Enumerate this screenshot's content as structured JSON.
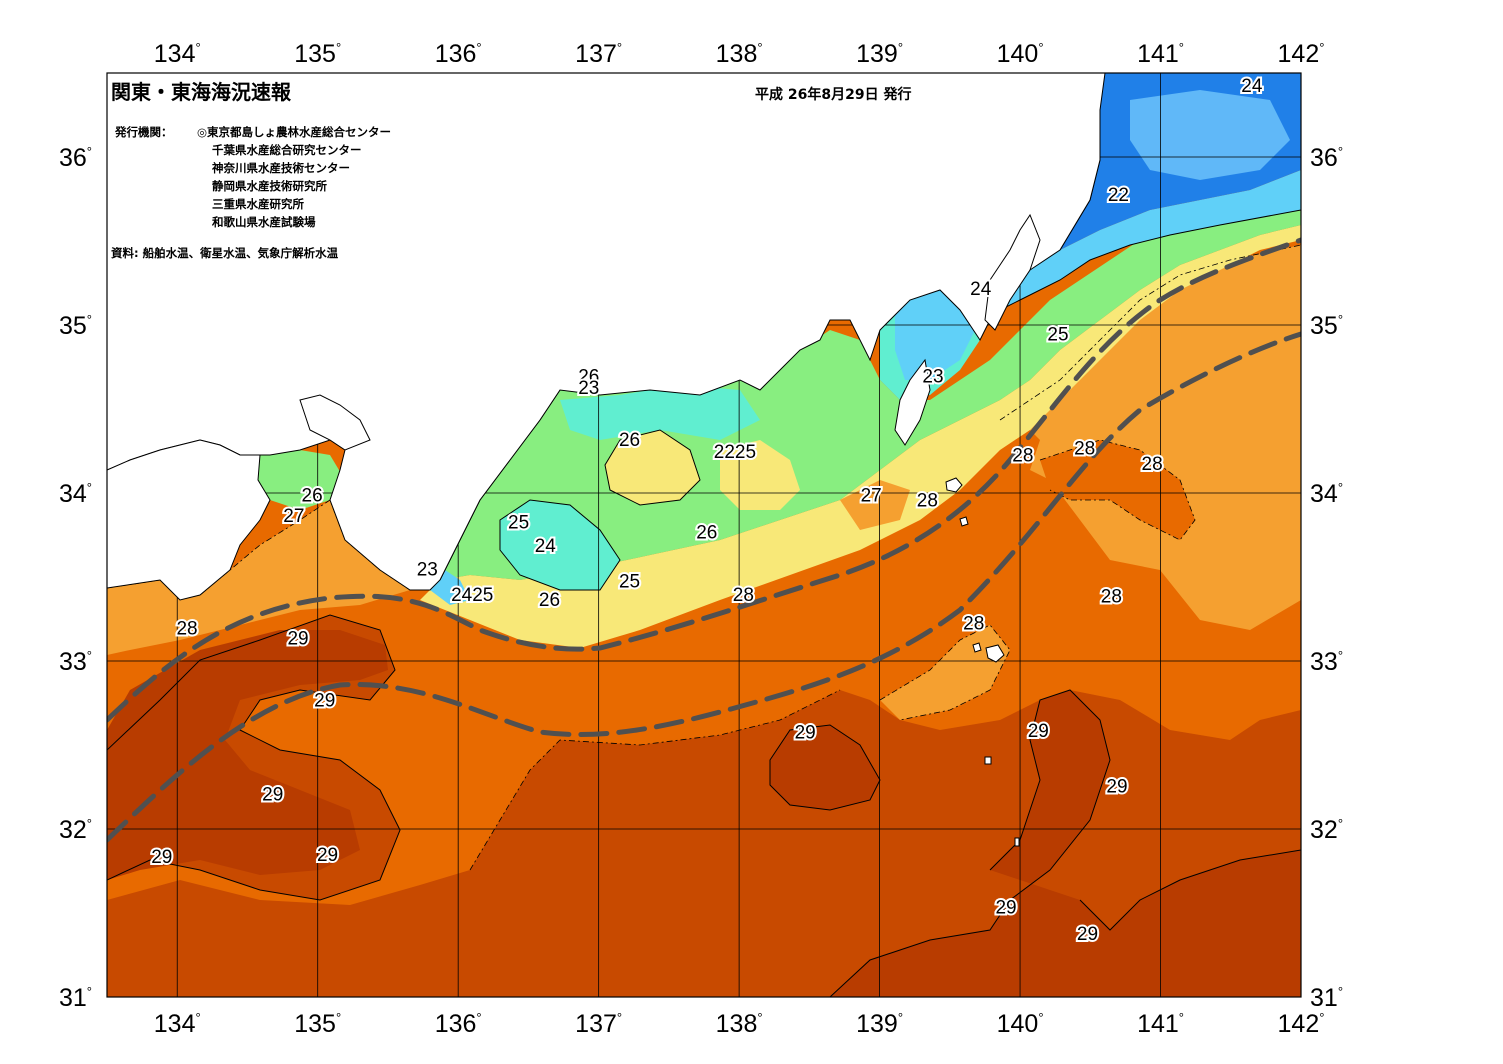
{
  "map": {
    "title": "関東・東海海況速報",
    "issue_date": "平成 26年8月29日 発行",
    "publishers_label": "発行機関：",
    "publishers": [
      "◎東京都島しょ農林水産総合センター",
      "千葉県水産総合研究センター",
      "神奈川県水産技術センター",
      "静岡県水産技術研究所",
      "三重県水産研究所",
      "和歌山県水産試験場"
    ],
    "source": "資料: 船舶水温、衛星水温、気象庁解析水温",
    "longitude_labels": [
      "134",
      "135",
      "136",
      "137",
      "138",
      "139",
      "140",
      "141",
      "142"
    ],
    "latitude_labels": [
      "31",
      "32",
      "33",
      "34",
      "35",
      "36"
    ],
    "degree_symbol": "°",
    "isotherm_labels": [
      {
        "text": "24",
        "lon": 141.65,
        "lat": 36.43
      },
      {
        "text": "22",
        "lon": 140.7,
        "lat": 35.78
      },
      {
        "text": "24",
        "lon": 139.72,
        "lat": 35.22
      },
      {
        "text": "25",
        "lon": 140.27,
        "lat": 34.95
      },
      {
        "text": "23",
        "lon": 139.38,
        "lat": 34.7
      },
      {
        "text": "26",
        "lon": 136.93,
        "lat": 34.7
      },
      {
        "text": "23",
        "lon": 136.93,
        "lat": 34.63
      },
      {
        "text": "26",
        "lon": 137.22,
        "lat": 34.32
      },
      {
        "text": "2225",
        "lon": 137.97,
        "lat": 34.25
      },
      {
        "text": "28",
        "lon": 140.02,
        "lat": 34.23
      },
      {
        "text": "28",
        "lon": 140.46,
        "lat": 34.27
      },
      {
        "text": "28",
        "lon": 140.94,
        "lat": 34.18
      },
      {
        "text": "27",
        "lon": 138.94,
        "lat": 33.99
      },
      {
        "text": "28",
        "lon": 139.34,
        "lat": 33.96
      },
      {
        "text": "26",
        "lon": 134.96,
        "lat": 33.99
      },
      {
        "text": "27",
        "lon": 134.83,
        "lat": 33.87
      },
      {
        "text": "25",
        "lon": 136.43,
        "lat": 33.83
      },
      {
        "text": "24",
        "lon": 136.62,
        "lat": 33.69
      },
      {
        "text": "26",
        "lon": 137.77,
        "lat": 33.77
      },
      {
        "text": "23",
        "lon": 135.78,
        "lat": 33.55
      },
      {
        "text": "25",
        "lon": 137.22,
        "lat": 33.48
      },
      {
        "text": "2425",
        "lon": 136.1,
        "lat": 33.4
      },
      {
        "text": "26",
        "lon": 136.65,
        "lat": 33.37
      },
      {
        "text": "28",
        "lon": 138.03,
        "lat": 33.4
      },
      {
        "text": "28",
        "lon": 140.65,
        "lat": 33.39
      },
      {
        "text": "28",
        "lon": 134.07,
        "lat": 33.2
      },
      {
        "text": "29",
        "lon": 134.86,
        "lat": 33.14
      },
      {
        "text": "28",
        "lon": 139.67,
        "lat": 33.23
      },
      {
        "text": "29",
        "lon": 135.05,
        "lat": 32.77
      },
      {
        "text": "29",
        "lon": 138.47,
        "lat": 32.58
      },
      {
        "text": "29",
        "lon": 140.13,
        "lat": 32.59
      },
      {
        "text": "29",
        "lon": 140.69,
        "lat": 32.26
      },
      {
        "text": "29",
        "lon": 134.68,
        "lat": 32.21
      },
      {
        "text": "29",
        "lon": 133.89,
        "lat": 31.84
      },
      {
        "text": "29",
        "lon": 135.07,
        "lat": 31.85
      },
      {
        "text": "29",
        "lon": 139.9,
        "lat": 31.54
      },
      {
        "text": "29",
        "lon": 140.48,
        "lat": 31.38
      }
    ],
    "colors": {
      "temp_29": "#c84a00",
      "temp_28": "#e86a00",
      "temp_27": "#f5a030",
      "temp_26": "#f8e878",
      "temp_25": "#88ee80",
      "temp_24": "#60eed0",
      "temp_23": "#60d0f8",
      "temp_22": "#2080e8",
      "kuroshio_axis": "#505050",
      "land": "#ffffff"
    }
  }
}
